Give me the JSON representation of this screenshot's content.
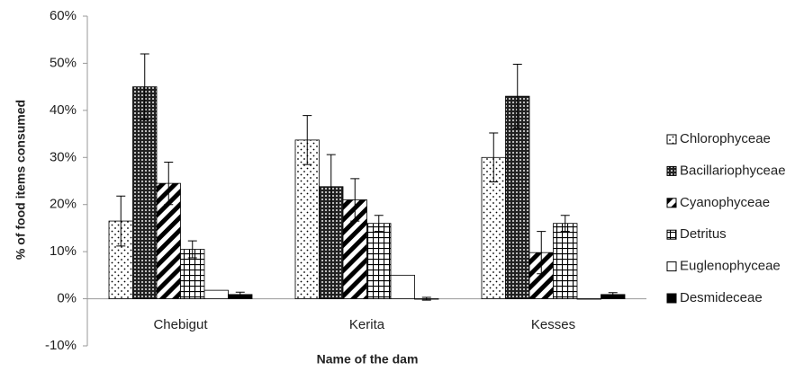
{
  "chart_data": {
    "type": "bar",
    "x_label": "Name of the dam",
    "y_label": "% of food items consumed",
    "categories": [
      "Chebigut",
      "Kerita",
      "Kesses"
    ],
    "ylim": [
      -10,
      60
    ],
    "yticks": [
      {
        "value": -10,
        "label": "-10%"
      },
      {
        "value": 0,
        "label": "0%"
      },
      {
        "value": 10,
        "label": "10%"
      },
      {
        "value": 20,
        "label": "20%"
      },
      {
        "value": 30,
        "label": "30%"
      },
      {
        "value": 40,
        "label": "40%"
      },
      {
        "value": 50,
        "label": "50%"
      },
      {
        "value": 60,
        "label": "60%"
      }
    ],
    "series": [
      {
        "name": "Chlorophyceae",
        "color": "#000000",
        "pattern": "dots",
        "values": [
          16.5,
          33.7,
          30
        ],
        "errors": [
          5.3,
          5.2,
          5.2
        ]
      },
      {
        "name": "Bacillariophyceae",
        "color": "#000000",
        "pattern": "dense",
        "values": [
          45,
          23.8,
          43
        ],
        "errors": [
          7,
          6.8,
          6.8
        ]
      },
      {
        "name": "Cyanophyceae",
        "color": "#000000",
        "pattern": "stripes",
        "values": [
          24.5,
          21,
          9.8
        ],
        "errors": [
          4.5,
          4.5,
          4.5
        ]
      },
      {
        "name": "Detritus",
        "color": "#000000",
        "pattern": "grid",
        "values": [
          10.5,
          16,
          16
        ],
        "errors": [
          1.8,
          1.7,
          1.7
        ]
      },
      {
        "name": "Euglenophyceae",
        "color": "#000000",
        "pattern": "empty",
        "values": [
          1.8,
          5,
          0
        ],
        "errors": [
          null,
          null,
          null
        ]
      },
      {
        "name": "Desmideceae",
        "color": "#000000",
        "pattern": "solid",
        "values": [
          0.9,
          0,
          0.9
        ],
        "errors": [
          0.5,
          0.3,
          0.4
        ]
      }
    ]
  }
}
